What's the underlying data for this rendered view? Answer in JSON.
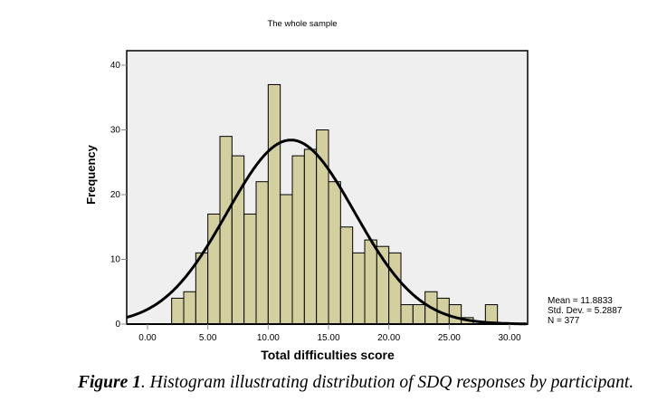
{
  "chart_data": {
    "type": "bar",
    "title": "The whole sample",
    "xlabel": "Total difficulties score",
    "ylabel": "Frequency",
    "xlim": [
      -1.7,
      31.5
    ],
    "ylim": [
      0,
      40
    ],
    "xticks": [
      0,
      5,
      10,
      15,
      20,
      25,
      30
    ],
    "xtick_labels": [
      "0.00",
      "5.00",
      "10.00",
      "15.00",
      "20.00",
      "25.00",
      "30.00"
    ],
    "yticks": [
      0,
      10,
      20,
      30,
      40
    ],
    "ytick_labels": [
      "0",
      "10",
      "20",
      "30",
      "40"
    ],
    "bin_width": 1,
    "bins_start": [
      2,
      3,
      4,
      5,
      6,
      7,
      8,
      9,
      10,
      11,
      12,
      13,
      14,
      15,
      16,
      17,
      18,
      19,
      20,
      21,
      22,
      23,
      24,
      25,
      26,
      27,
      28
    ],
    "values": [
      4,
      5,
      11,
      17,
      29,
      26,
      17,
      22,
      37,
      20,
      26,
      27,
      30,
      22,
      15,
      11,
      13,
      12,
      11,
      3,
      3,
      5,
      4,
      3,
      1,
      0,
      3
    ],
    "normal_curve": {
      "mean": 11.8833,
      "sd": 5.2887,
      "n": 377
    },
    "grid": false,
    "legend": "none",
    "colors": {
      "bar_fill": "#d3cf9f",
      "bar_stroke": "#000000",
      "plot_bg": "#efefef",
      "curve": "#000000"
    }
  },
  "stats": {
    "mean": "Mean = 11.8833",
    "sd": "Std. Dev. = 5.2887",
    "n": "N = 377"
  },
  "caption": {
    "label": "Figure 1",
    "text": ". Histogram  illustrating distribution of SDQ  responses by participant."
  }
}
